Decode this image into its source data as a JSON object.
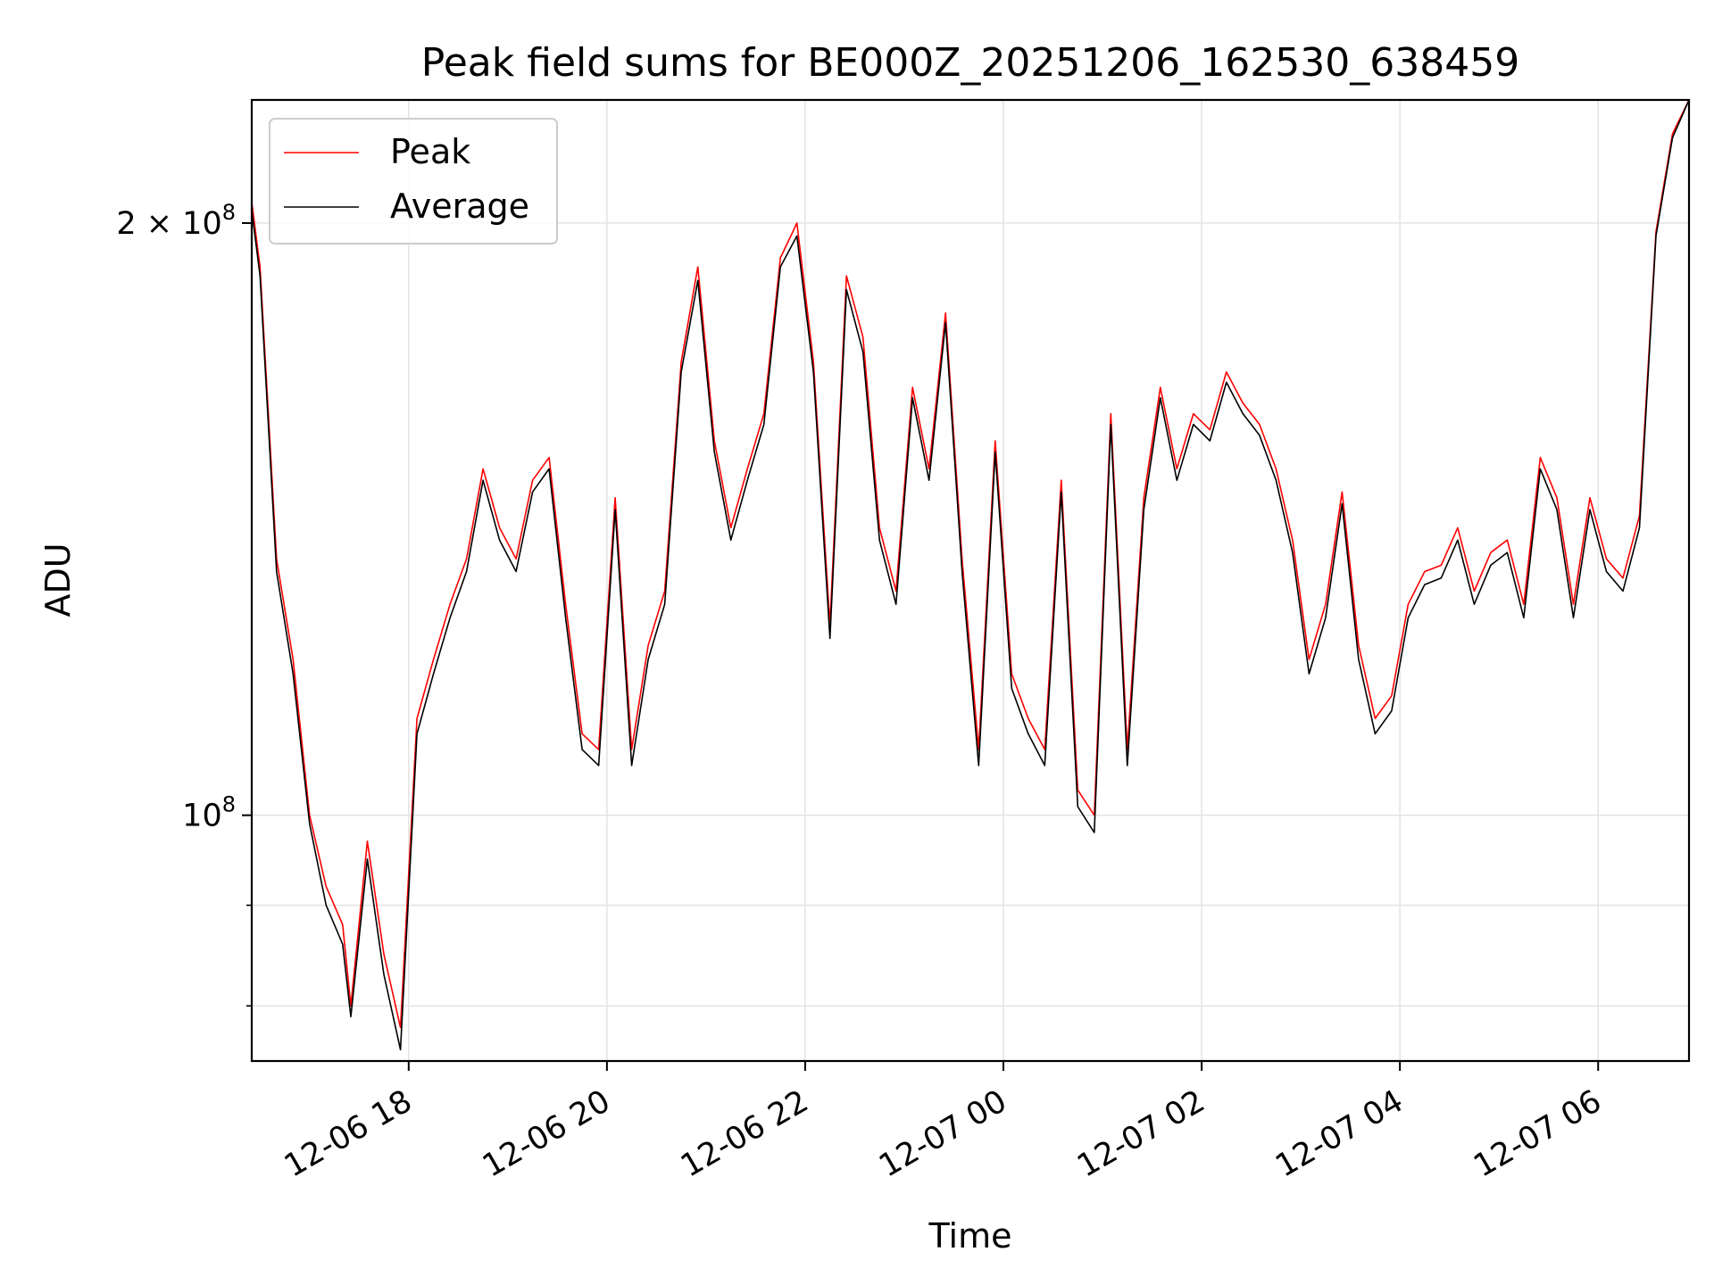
{
  "chart_data": {
    "type": "line",
    "title": "Peak field sums for BE000Z_20251206_162530_638459",
    "xlabel": "Time",
    "ylabel": "ADU",
    "yscale": "log",
    "ylim": [
      75000000,
      231000000
    ],
    "grid": true,
    "legend_position": "top-left",
    "x_ticks": [
      "12-06 18",
      "12-06 20",
      "12-06 22",
      "12-07 00",
      "12-07 02",
      "12-07 04",
      "12-07 06"
    ],
    "y_ticks": [
      {
        "value": 100000000,
        "base": "10",
        "exp": "8"
      },
      {
        "value": 200000000,
        "coef": "2 × ",
        "base": "10",
        "exp": "8"
      }
    ],
    "y_minor_ticks": [
      80000000,
      90000000
    ],
    "series": [
      {
        "name": "Peak",
        "color": "#ff0000",
        "x": [
          "2025-12-06 16:25",
          "2025-12-06 16:30",
          "2025-12-06 16:40",
          "2025-12-06 16:50",
          "2025-12-06 17:00",
          "2025-12-06 17:10",
          "2025-12-06 17:20",
          "2025-12-06 17:25",
          "2025-12-06 17:35",
          "2025-12-06 17:45",
          "2025-12-06 17:55",
          "2025-12-06 18:05",
          "2025-12-06 18:15",
          "2025-12-06 18:25",
          "2025-12-06 18:35",
          "2025-12-06 18:45",
          "2025-12-06 18:55",
          "2025-12-06 19:05",
          "2025-12-06 19:15",
          "2025-12-06 19:25",
          "2025-12-06 19:35",
          "2025-12-06 19:45",
          "2025-12-06 19:55",
          "2025-12-06 20:05",
          "2025-12-06 20:15",
          "2025-12-06 20:25",
          "2025-12-06 20:35",
          "2025-12-06 20:45",
          "2025-12-06 20:55",
          "2025-12-06 21:05",
          "2025-12-06 21:15",
          "2025-12-06 21:25",
          "2025-12-06 21:35",
          "2025-12-06 21:45",
          "2025-12-06 21:55",
          "2025-12-06 22:05",
          "2025-12-06 22:15",
          "2025-12-06 22:25",
          "2025-12-06 22:35",
          "2025-12-06 22:45",
          "2025-12-06 22:55",
          "2025-12-06 23:05",
          "2025-12-06 23:15",
          "2025-12-06 23:25",
          "2025-12-06 23:35",
          "2025-12-06 23:45",
          "2025-12-06 23:55",
          "2025-12-07 00:05",
          "2025-12-07 00:15",
          "2025-12-07 00:25",
          "2025-12-07 00:35",
          "2025-12-07 00:45",
          "2025-12-07 00:55",
          "2025-12-07 01:05",
          "2025-12-07 01:15",
          "2025-12-07 01:25",
          "2025-12-07 01:35",
          "2025-12-07 01:45",
          "2025-12-07 01:55",
          "2025-12-07 02:05",
          "2025-12-07 02:15",
          "2025-12-07 02:25",
          "2025-12-07 02:35",
          "2025-12-07 02:45",
          "2025-12-07 02:55",
          "2025-12-07 03:05",
          "2025-12-07 03:15",
          "2025-12-07 03:25",
          "2025-12-07 03:35",
          "2025-12-07 03:45",
          "2025-12-07 03:55",
          "2025-12-07 04:05",
          "2025-12-07 04:15",
          "2025-12-07 04:25",
          "2025-12-07 04:35",
          "2025-12-07 04:45",
          "2025-12-07 04:55",
          "2025-12-07 05:05",
          "2025-12-07 05:15",
          "2025-12-07 05:25",
          "2025-12-07 05:35",
          "2025-12-07 05:45",
          "2025-12-07 05:55",
          "2025-12-07 06:05",
          "2025-12-07 06:15",
          "2025-12-07 06:25",
          "2025-12-07 06:35",
          "2025-12-07 06:45",
          "2025-12-07 06:55"
        ],
        "values": [
          205000000,
          190000000,
          135000000,
          120000000,
          100000000,
          92000000,
          88000000,
          80000000,
          97000000,
          85000000,
          78000000,
          112000000,
          120000000,
          128000000,
          135000000,
          150000000,
          140000000,
          135000000,
          148000000,
          152000000,
          128000000,
          110000000,
          108000000,
          145000000,
          108000000,
          122000000,
          130000000,
          170000000,
          190000000,
          155000000,
          140000000,
          150000000,
          160000000,
          192000000,
          200000000,
          170000000,
          125000000,
          188000000,
          175000000,
          140000000,
          130000000,
          165000000,
          150000000,
          180000000,
          135000000,
          108000000,
          155000000,
          118000000,
          112000000,
          108000000,
          148000000,
          103000000,
          100000000,
          160000000,
          108000000,
          145000000,
          165000000,
          150000000,
          160000000,
          157000000,
          168000000,
          162000000,
          158000000,
          150000000,
          138000000,
          120000000,
          128000000,
          146000000,
          122000000,
          112000000,
          115000000,
          128000000,
          133000000,
          134000000,
          140000000,
          130000000,
          136000000,
          138000000,
          128000000,
          152000000,
          145000000,
          128000000,
          145000000,
          135000000,
          132000000,
          142000000,
          198000000,
          222000000,
          231000000
        ]
      },
      {
        "name": "Average",
        "color": "#000000",
        "x": [
          "2025-12-06 16:25",
          "2025-12-06 16:30",
          "2025-12-06 16:40",
          "2025-12-06 16:50",
          "2025-12-06 17:00",
          "2025-12-06 17:10",
          "2025-12-06 17:20",
          "2025-12-06 17:25",
          "2025-12-06 17:35",
          "2025-12-06 17:45",
          "2025-12-06 17:55",
          "2025-12-06 18:05",
          "2025-12-06 18:15",
          "2025-12-06 18:25",
          "2025-12-06 18:35",
          "2025-12-06 18:45",
          "2025-12-06 18:55",
          "2025-12-06 19:05",
          "2025-12-06 19:15",
          "2025-12-06 19:25",
          "2025-12-06 19:35",
          "2025-12-06 19:45",
          "2025-12-06 19:55",
          "2025-12-06 20:05",
          "2025-12-06 20:15",
          "2025-12-06 20:25",
          "2025-12-06 20:35",
          "2025-12-06 20:45",
          "2025-12-06 20:55",
          "2025-12-06 21:05",
          "2025-12-06 21:15",
          "2025-12-06 21:25",
          "2025-12-06 21:35",
          "2025-12-06 21:45",
          "2025-12-06 21:55",
          "2025-12-06 22:05",
          "2025-12-06 22:15",
          "2025-12-06 22:25",
          "2025-12-06 22:35",
          "2025-12-06 22:45",
          "2025-12-06 22:55",
          "2025-12-06 23:05",
          "2025-12-06 23:15",
          "2025-12-06 23:25",
          "2025-12-06 23:35",
          "2025-12-06 23:45",
          "2025-12-06 23:55",
          "2025-12-07 00:05",
          "2025-12-07 00:15",
          "2025-12-07 00:25",
          "2025-12-07 00:35",
          "2025-12-07 00:45",
          "2025-12-07 00:55",
          "2025-12-07 01:05",
          "2025-12-07 01:15",
          "2025-12-07 01:25",
          "2025-12-07 01:35",
          "2025-12-07 01:45",
          "2025-12-07 01:55",
          "2025-12-07 02:05",
          "2025-12-07 02:15",
          "2025-12-07 02:25",
          "2025-12-07 02:35",
          "2025-12-07 02:45",
          "2025-12-07 02:55",
          "2025-12-07 03:05",
          "2025-12-07 03:15",
          "2025-12-07 03:25",
          "2025-12-07 03:35",
          "2025-12-07 03:45",
          "2025-12-07 03:55",
          "2025-12-07 04:05",
          "2025-12-07 04:15",
          "2025-12-07 04:25",
          "2025-12-07 04:35",
          "2025-12-07 04:45",
          "2025-12-07 04:55",
          "2025-12-07 05:05",
          "2025-12-07 05:15",
          "2025-12-07 05:25",
          "2025-12-07 05:35",
          "2025-12-07 05:45",
          "2025-12-07 05:55",
          "2025-12-07 06:05",
          "2025-12-07 06:15",
          "2025-12-07 06:25",
          "2025-12-07 06:35",
          "2025-12-07 06:45",
          "2025-12-07 06:55"
        ],
        "values": [
          203000000,
          188000000,
          133000000,
          118000000,
          99000000,
          90000000,
          86000000,
          79000000,
          95000000,
          83000000,
          76000000,
          110000000,
          118000000,
          126000000,
          133000000,
          148000000,
          138000000,
          133000000,
          146000000,
          150000000,
          126000000,
          108000000,
          106000000,
          143000000,
          106000000,
          120000000,
          128000000,
          168000000,
          187000000,
          153000000,
          138000000,
          148000000,
          158000000,
          190000000,
          197000000,
          168000000,
          123000000,
          185000000,
          172000000,
          138000000,
          128000000,
          163000000,
          148000000,
          178000000,
          133000000,
          106000000,
          153000000,
          116000000,
          110000000,
          106000000,
          146000000,
          101000000,
          98000000,
          158000000,
          106000000,
          143000000,
          163000000,
          148000000,
          158000000,
          155000000,
          166000000,
          160000000,
          156000000,
          148000000,
          136000000,
          118000000,
          126000000,
          144000000,
          120000000,
          110000000,
          113000000,
          126000000,
          131000000,
          132000000,
          138000000,
          128000000,
          134000000,
          136000000,
          126000000,
          150000000,
          143000000,
          126000000,
          143000000,
          133000000,
          130000000,
          140000000,
          197000000,
          221000000,
          231000000
        ]
      }
    ]
  }
}
